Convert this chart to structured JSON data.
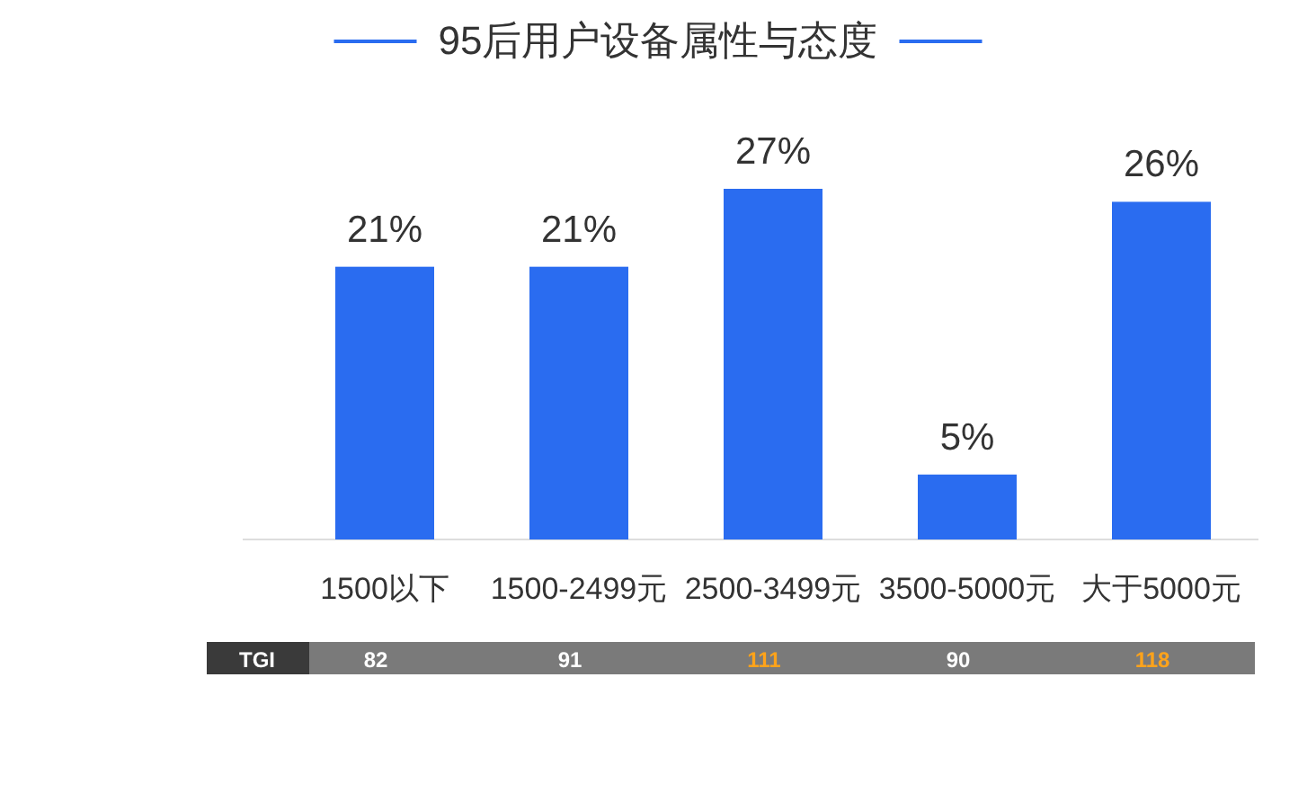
{
  "chart_data": {
    "type": "bar",
    "title": "95后用户设备属性与态度",
    "categories": [
      "1500以下",
      "1500-2499元",
      "2500-3499元",
      "3500-5000元",
      "大于5000元"
    ],
    "values": [
      21,
      21,
      27,
      5,
      26
    ],
    "value_labels": [
      "21%",
      "21%",
      "27%",
      "5%",
      "26%"
    ],
    "color": "#2a6cf0",
    "annotations": [
      "TGI",
      "82",
      "91",
      "111",
      "90",
      "118"
    ]
  }
}
